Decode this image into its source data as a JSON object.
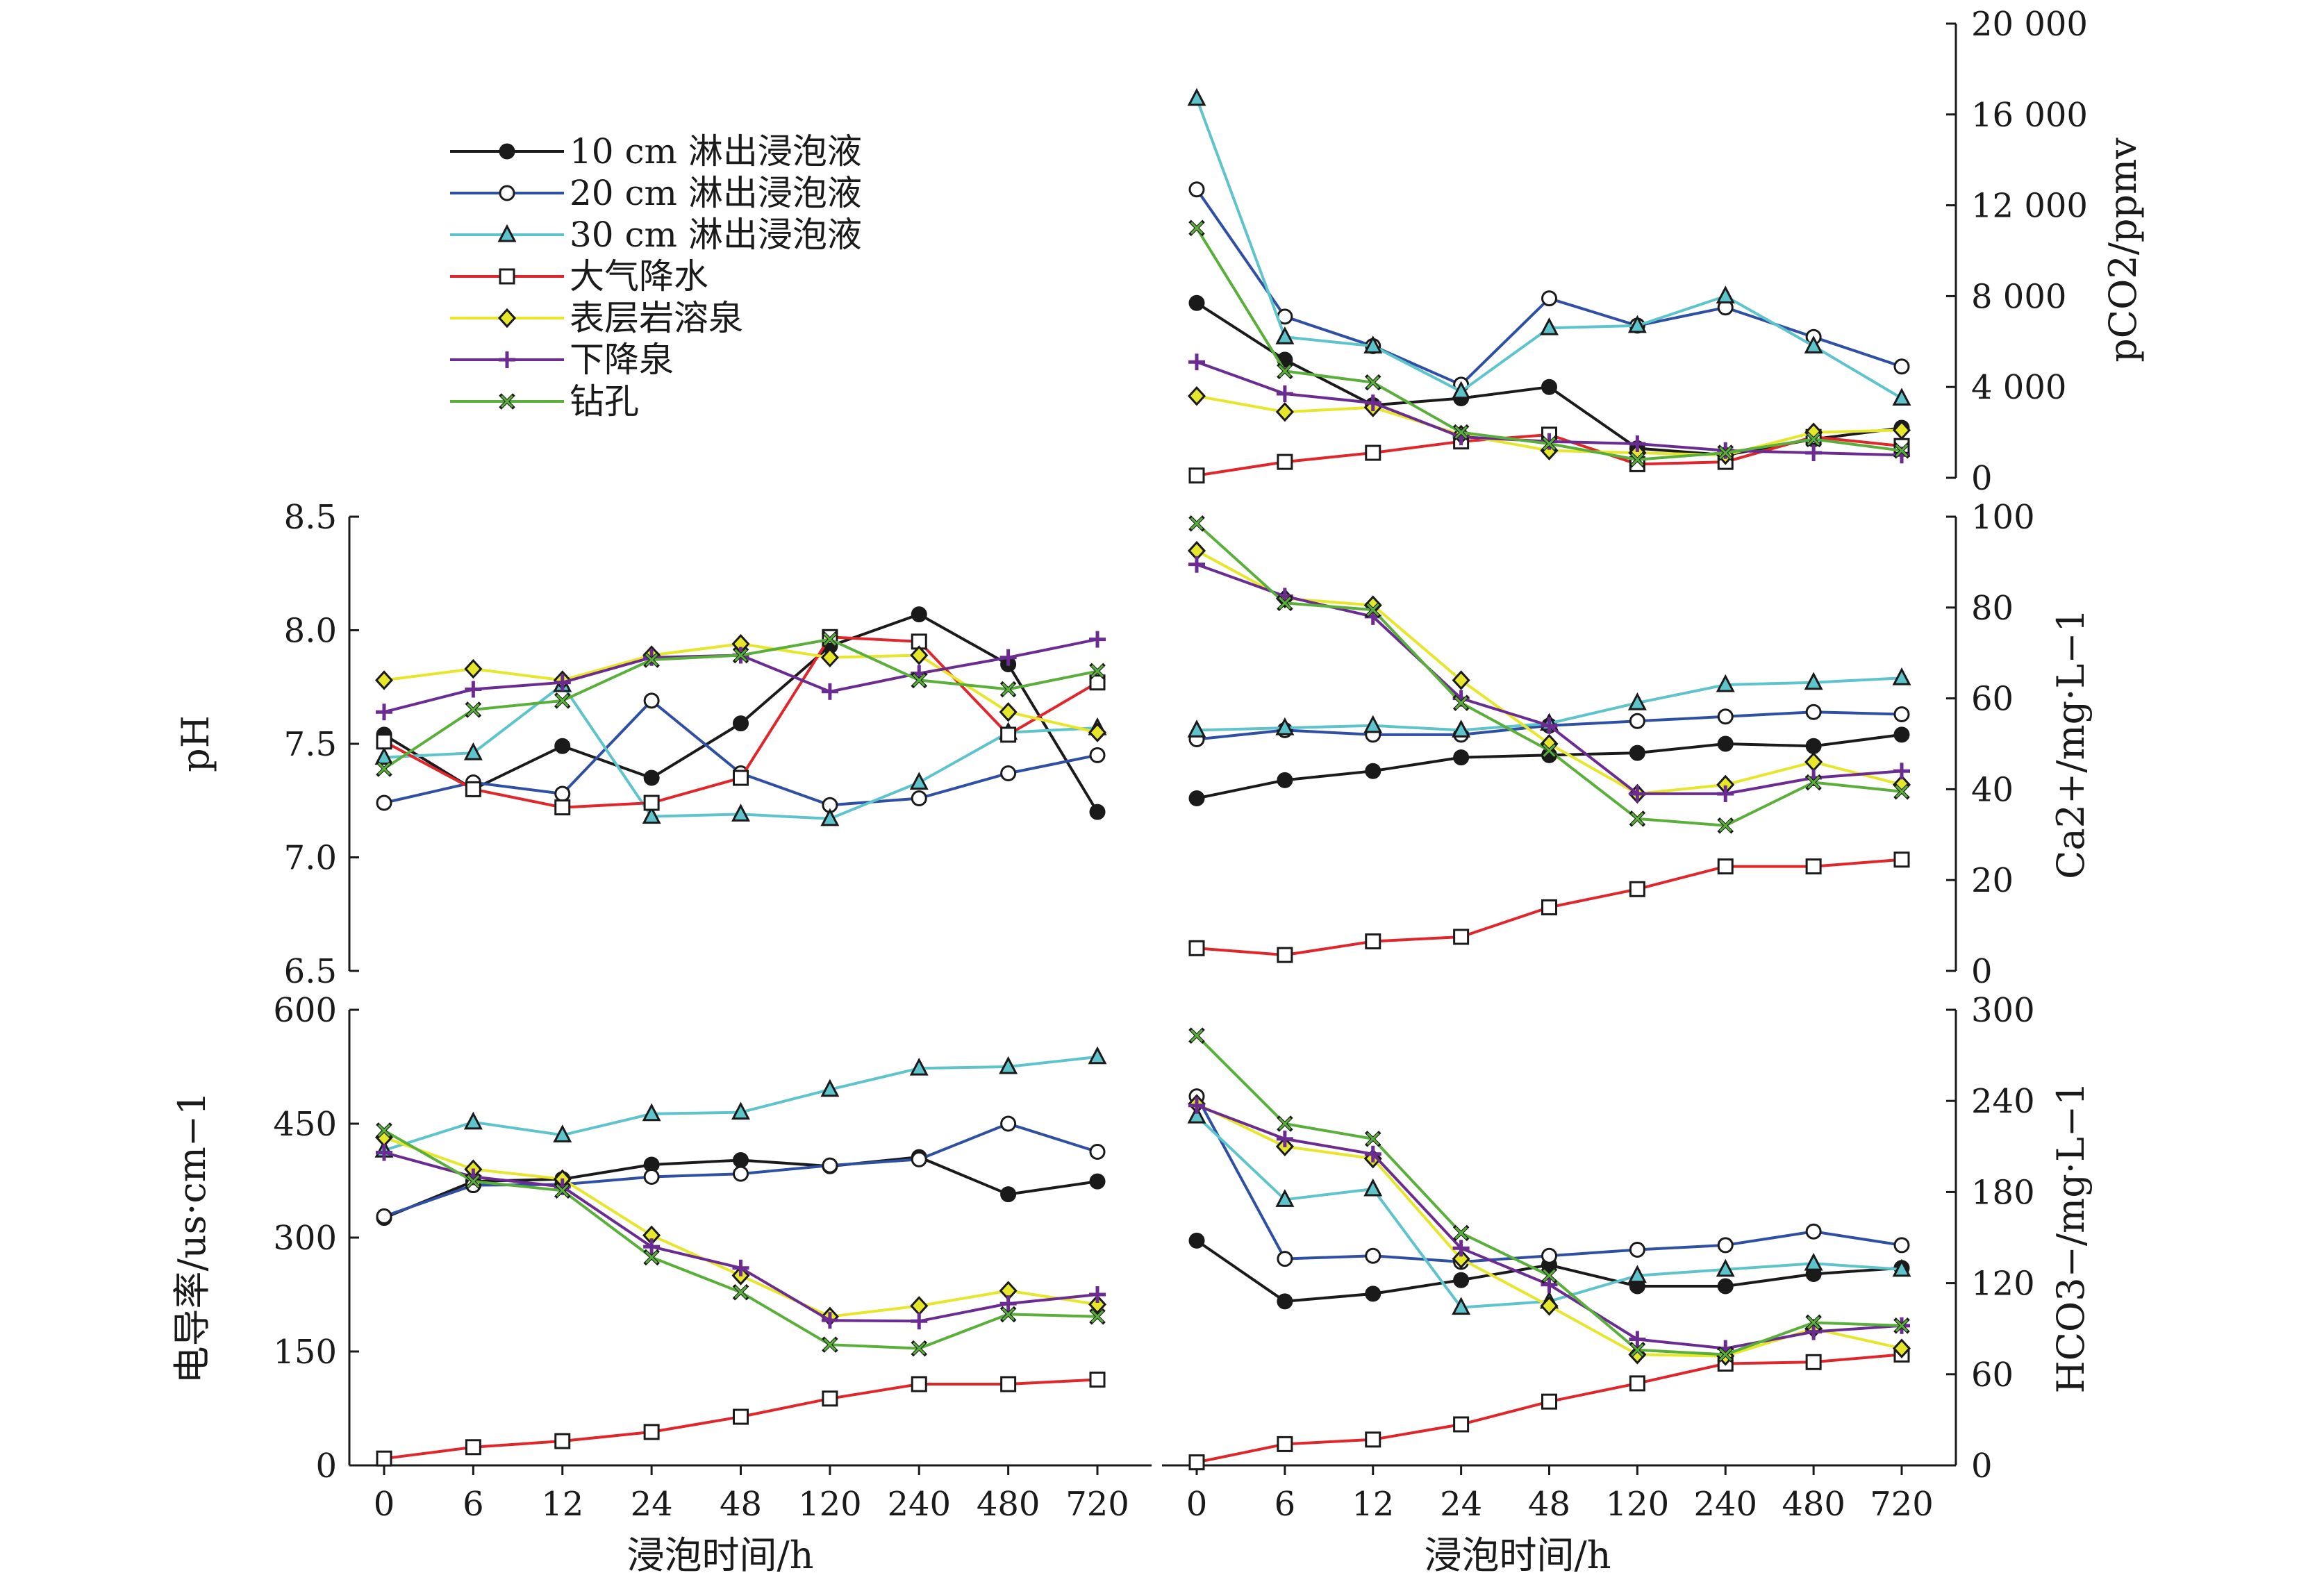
{
  "legend": [
    {
      "name": "10 cm 淋出浸泡液",
      "color": "#1a1a1a",
      "marker": "filled-circle"
    },
    {
      "name": "20 cm 淋出浸泡液",
      "color": "#2e4fa3",
      "marker": "open-circle"
    },
    {
      "name": "30 cm 淋出浸泡液",
      "color": "#5ec4cc",
      "marker": "triangle"
    },
    {
      "name": "大气降水",
      "color": "#e0262b",
      "marker": "open-square"
    },
    {
      "name": "表层岩溶泉",
      "color": "#e6e62a",
      "marker": "diamond"
    },
    {
      "name": "下降泉",
      "color": "#6b2c91",
      "marker": "plus"
    },
    {
      "name": "钻孔",
      "color": "#5aae3a",
      "marker": "x"
    }
  ],
  "chart_data": [
    {
      "id": "pco2",
      "type": "line",
      "categories": [
        "0",
        "6",
        "12",
        "24",
        "48",
        "120",
        "240",
        "480",
        "720"
      ],
      "ylabel": "pCO2/ppmv",
      "ylim": [
        0,
        20000
      ],
      "yticks": [
        "0",
        "4 000",
        "8 000",
        "12 000",
        "16 000",
        "20 000"
      ],
      "ytick_values": [
        0,
        4000,
        8000,
        12000,
        16000,
        20000
      ],
      "yaxis_side": "right",
      "series": [
        {
          "name": "10 cm 淋出浸泡液",
          "values": [
            7700,
            5200,
            3200,
            3500,
            4000,
            1300,
            1000,
            1700,
            2200
          ]
        },
        {
          "name": "20 cm 淋出浸泡液",
          "values": [
            12700,
            7100,
            5800,
            4100,
            7900,
            6700,
            7500,
            6200,
            4900
          ]
        },
        {
          "name": "30 cm 淋出浸泡液",
          "values": [
            16700,
            6200,
            5800,
            3800,
            6600,
            6700,
            8000,
            5800,
            3500
          ]
        },
        {
          "name": "大气降水",
          "values": [
            100,
            700,
            1100,
            1600,
            1900,
            600,
            700,
            1800,
            1400
          ]
        },
        {
          "name": "表层岩溶泉",
          "values": [
            3600,
            2900,
            3100,
            1900,
            1200,
            1100,
            1000,
            2000,
            2100
          ]
        },
        {
          "name": "下降泉",
          "values": [
            5100,
            3700,
            3300,
            1800,
            1600,
            1500,
            1200,
            1100,
            1000
          ]
        },
        {
          "name": "钻孔",
          "values": [
            11000,
            4700,
            4200,
            2000,
            1500,
            800,
            1100,
            1700,
            1200
          ]
        }
      ]
    },
    {
      "id": "ph",
      "type": "line",
      "categories": [
        "0",
        "6",
        "12",
        "24",
        "48",
        "120",
        "240",
        "480",
        "720"
      ],
      "ylabel": "pH",
      "ylim": [
        6.5,
        8.5
      ],
      "yticks": [
        "6.5",
        "7.0",
        "7.5",
        "8.0",
        "8.5"
      ],
      "ytick_values": [
        6.5,
        7.0,
        7.5,
        8.0,
        8.5
      ],
      "yaxis_side": "left",
      "series": [
        {
          "name": "10 cm 淋出浸泡液",
          "values": [
            7.54,
            7.3,
            7.49,
            7.35,
            7.59,
            7.93,
            8.07,
            7.85,
            7.2
          ]
        },
        {
          "name": "20 cm 淋出浸泡液",
          "values": [
            7.24,
            7.33,
            7.28,
            7.69,
            7.37,
            7.23,
            7.26,
            7.37,
            7.45
          ]
        },
        {
          "name": "30 cm 淋出浸泡液",
          "values": [
            7.44,
            7.46,
            7.76,
            7.18,
            7.19,
            7.17,
            7.33,
            7.55,
            7.57
          ]
        },
        {
          "name": "大气降水",
          "values": [
            7.51,
            7.3,
            7.22,
            7.24,
            7.35,
            7.97,
            7.95,
            7.54,
            7.77
          ]
        },
        {
          "name": "表层岩溶泉",
          "values": [
            7.78,
            7.83,
            7.78,
            7.89,
            7.94,
            7.88,
            7.89,
            7.64,
            7.55
          ]
        },
        {
          "name": "下降泉",
          "values": [
            7.64,
            7.74,
            7.77,
            7.88,
            7.89,
            7.73,
            7.81,
            7.88,
            7.96
          ]
        },
        {
          "name": "钻孔",
          "values": [
            7.39,
            7.65,
            7.69,
            7.87,
            7.89,
            7.96,
            7.78,
            7.74,
            7.82
          ]
        }
      ]
    },
    {
      "id": "ca",
      "type": "line",
      "categories": [
        "0",
        "6",
        "12",
        "24",
        "48",
        "120",
        "240",
        "480",
        "720"
      ],
      "ylabel": "Ca2+/mg·L−1",
      "ylim": [
        0,
        100
      ],
      "yticks": [
        "0",
        "20",
        "40",
        "60",
        "80",
        "100"
      ],
      "ytick_values": [
        0,
        20,
        40,
        60,
        80,
        100
      ],
      "yaxis_side": "right",
      "series": [
        {
          "name": "10 cm 淋出浸泡液",
          "values": [
            38,
            42,
            44,
            47,
            47.5,
            48,
            50,
            49.5,
            52
          ]
        },
        {
          "name": "20 cm 淋出浸泡液",
          "values": [
            51,
            53,
            52,
            52,
            54,
            55,
            56,
            57,
            56.5
          ]
        },
        {
          "name": "30 cm 淋出浸泡液",
          "values": [
            53,
            53.5,
            54,
            53,
            54.5,
            59,
            63,
            63.5,
            64.5
          ]
        },
        {
          "name": "大气降水",
          "values": [
            5,
            3.5,
            6.5,
            7.5,
            14,
            18,
            23,
            23,
            24.5
          ]
        },
        {
          "name": "表层岩溶泉",
          "values": [
            92.5,
            82,
            80.5,
            64,
            50,
            39,
            41,
            46,
            41
          ]
        },
        {
          "name": "下降泉",
          "values": [
            89.5,
            82.5,
            78,
            60,
            54,
            39,
            39,
            42.5,
            44
          ]
        },
        {
          "name": "钻孔",
          "values": [
            98.5,
            81,
            79.5,
            59,
            48.5,
            33.5,
            32,
            41.5,
            39.5
          ]
        }
      ]
    },
    {
      "id": "ec",
      "type": "line",
      "categories": [
        "0",
        "6",
        "12",
        "24",
        "48",
        "120",
        "240",
        "480",
        "720"
      ],
      "ylabel": "电导率/us·cm−1",
      "ylim": [
        0,
        600
      ],
      "yticks": [
        "0",
        "150",
        "300",
        "450",
        "600"
      ],
      "ytick_values": [
        0,
        150,
        300,
        450,
        600
      ],
      "yaxis_side": "left",
      "series": [
        {
          "name": "10 cm 淋出浸泡液",
          "values": [
            326,
            374,
            377,
            396,
            402,
            394,
            406,
            357,
            374
          ]
        },
        {
          "name": "20 cm 淋出浸泡液",
          "values": [
            328,
            369,
            370,
            380,
            384,
            395,
            403,
            450,
            413
          ]
        },
        {
          "name": "30 cm 淋出浸泡液",
          "values": [
            415,
            452,
            435,
            463,
            465,
            495,
            523,
            525,
            538
          ]
        },
        {
          "name": "大气降水",
          "values": [
            9,
            24,
            32,
            44,
            64,
            88,
            107,
            107,
            113
          ]
        },
        {
          "name": "表层岩溶泉",
          "values": [
            432,
            390,
            377,
            303,
            250,
            196,
            210,
            230,
            212
          ]
        },
        {
          "name": "下降泉",
          "values": [
            412,
            380,
            367,
            288,
            260,
            191,
            190,
            213,
            225
          ]
        },
        {
          "name": "钻孔",
          "values": [
            441,
            374,
            362,
            274,
            228,
            159,
            154,
            199,
            196
          ]
        }
      ]
    },
    {
      "id": "hco3",
      "type": "line",
      "categories": [
        "0",
        "6",
        "12",
        "24",
        "48",
        "120",
        "240",
        "480",
        "720"
      ],
      "ylabel": "HCO3−/mg·L−1",
      "ylim": [
        0,
        300
      ],
      "yticks": [
        "0",
        "60",
        "120",
        "180",
        "240",
        "300"
      ],
      "ytick_values": [
        0,
        60,
        120,
        180,
        240,
        300
      ],
      "yaxis_side": "right",
      "series": [
        {
          "name": "10 cm 淋出浸泡液",
          "values": [
            148,
            108,
            113,
            122,
            132,
            118,
            118,
            126,
            130
          ]
        },
        {
          "name": "20 cm 淋出浸泡液",
          "values": [
            243,
            136,
            138,
            134,
            138,
            142,
            145,
            154,
            145
          ]
        },
        {
          "name": "30 cm 淋出浸泡液",
          "values": [
            230,
            175,
            182,
            104,
            108,
            125,
            129,
            133,
            129
          ]
        },
        {
          "name": "大气降水",
          "values": [
            2,
            14,
            17,
            27,
            42,
            54,
            67,
            68,
            73
          ]
        },
        {
          "name": "表层岩溶泉",
          "values": [
            238,
            210,
            202,
            136,
            105,
            73,
            72,
            90,
            77
          ]
        },
        {
          "name": "下降泉",
          "values": [
            237,
            215,
            205,
            143,
            119,
            83,
            77,
            88,
            92
          ]
        },
        {
          "name": "钻孔",
          "values": [
            283,
            225,
            215,
            153,
            125,
            76,
            73,
            94,
            92
          ]
        }
      ]
    }
  ],
  "xlabel": "浸泡时间/h"
}
